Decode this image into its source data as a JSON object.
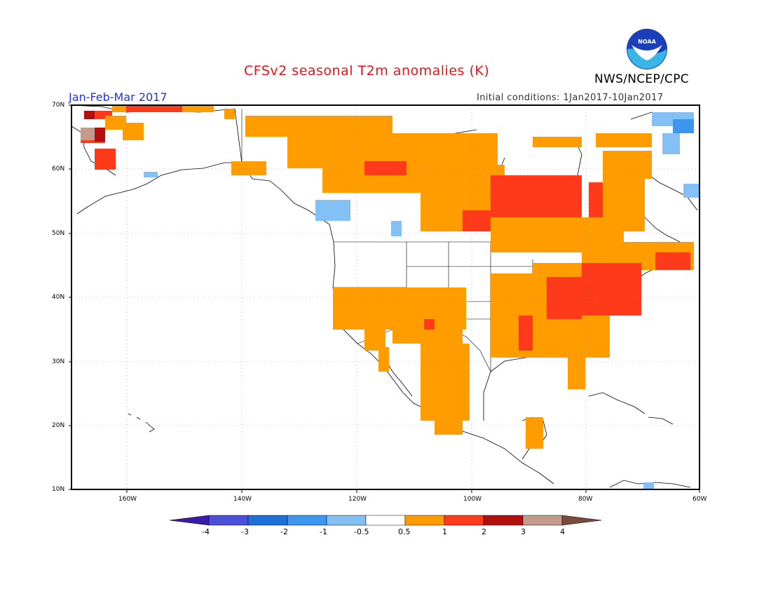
{
  "title": "CFSv2 seasonal T2m anomalies (K)",
  "agency": "NWS/NCEP/CPC",
  "logo_text": "NOAA",
  "season": "Jan-Feb-Mar 2017",
  "initial_conditions": "Initial conditions: 1Jan2017-10Jan2017",
  "map": {
    "lat_labels": [
      "70N",
      "60N",
      "50N",
      "40N",
      "30N",
      "20N",
      "10N"
    ],
    "lon_labels": [
      "160W",
      "140W",
      "120W",
      "100W",
      "80W",
      "60W"
    ],
    "lat_range": [
      10,
      70
    ],
    "lon_range": [
      -172,
      -60
    ],
    "grid": "dotted"
  },
  "colorbar": {
    "labels": [
      "-4",
      "-3",
      "-2",
      "-1",
      "-0.5",
      "0.5",
      "1",
      "2",
      "3",
      "4"
    ],
    "colors": [
      "#3a1aa8",
      "#4a4ed8",
      "#1e6fd8",
      "#3d96ee",
      "#82c0f5",
      "#ffffff",
      "#ff9d00",
      "#ff3a1a",
      "#b40f0f",
      "#c49a8a",
      "#7a4a3a"
    ]
  }
}
